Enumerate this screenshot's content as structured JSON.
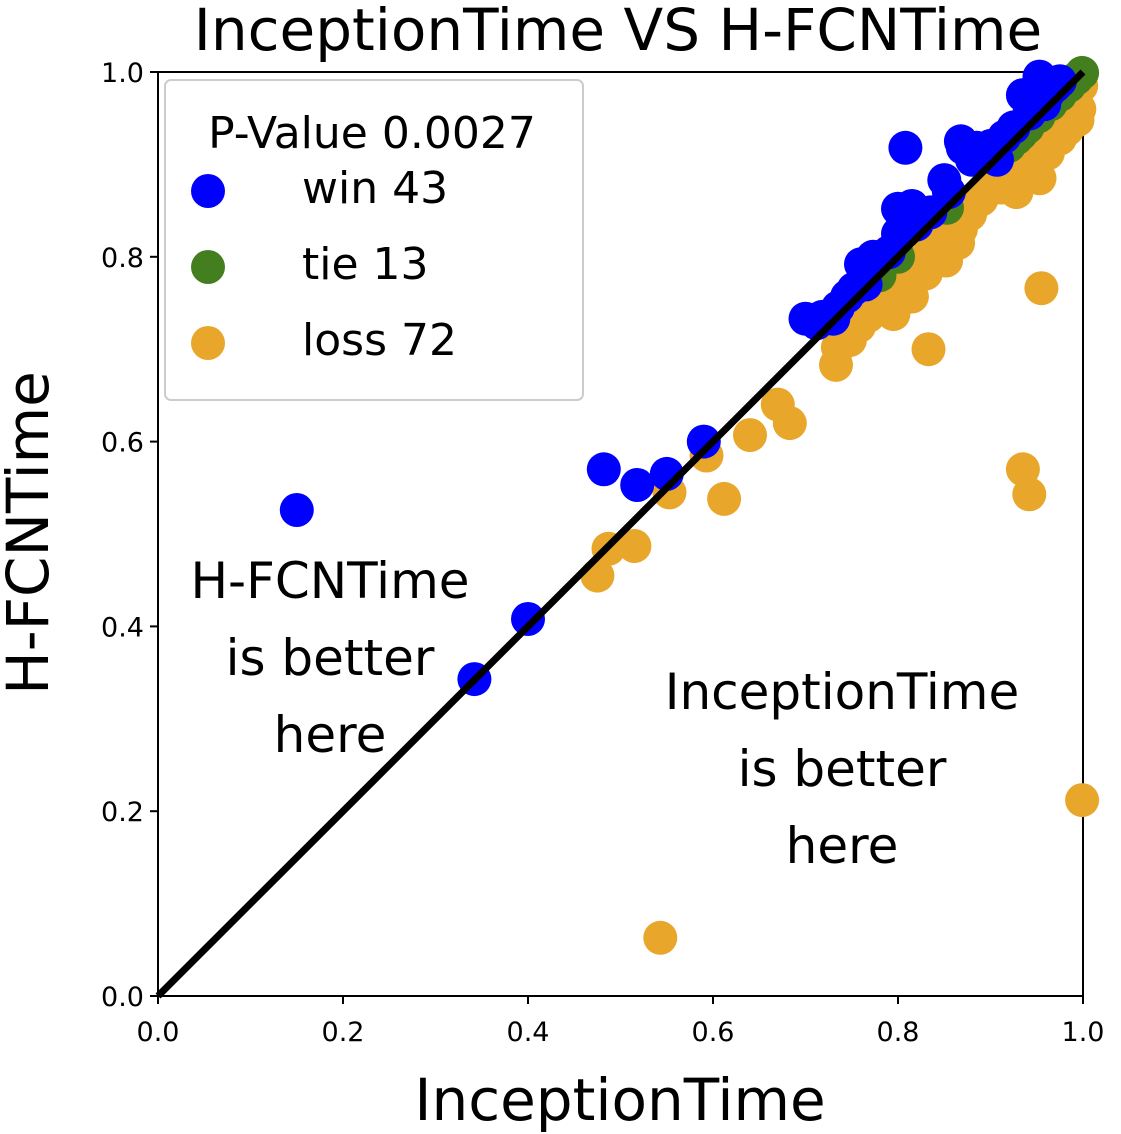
{
  "chart_data": {
    "type": "scatter",
    "title": "InceptionTime VS H-FCNTime",
    "xlabel": "InceptionTime",
    "ylabel": "H-FCNTime",
    "xlim": [
      0.0,
      1.0
    ],
    "ylim": [
      0.0,
      1.0
    ],
    "xticks": [
      "0.0",
      "0.2",
      "0.4",
      "0.6",
      "0.8",
      "1.0"
    ],
    "yticks": [
      "0.0",
      "0.2",
      "0.4",
      "0.6",
      "0.8",
      "1.0"
    ],
    "grid": false,
    "diagonal": true,
    "legend": {
      "title": "P-Value 0.0027",
      "placement": "top-left",
      "entries": [
        {
          "label": "win 43",
          "color": "#0000ff"
        },
        {
          "label": "tie 13",
          "color": "#437f1f"
        },
        {
          "label": "loss 72",
          "color": "#e8a62b"
        }
      ]
    },
    "annotations": [
      {
        "lines": [
          "H-FCNTime",
          "is better",
          "here"
        ]
      },
      {
        "lines": [
          "InceptionTime",
          "is better",
          "here"
        ]
      }
    ],
    "series": [
      {
        "name": "loss 72",
        "color": "#e8a62b",
        "points": [
          [
            0.543,
            0.063
          ],
          [
            0.999,
            0.212
          ],
          [
            0.475,
            0.455
          ],
          [
            0.487,
            0.484
          ],
          [
            0.515,
            0.487
          ],
          [
            0.553,
            0.545
          ],
          [
            0.612,
            0.538
          ],
          [
            0.593,
            0.585
          ],
          [
            0.64,
            0.607
          ],
          [
            0.67,
            0.64
          ],
          [
            0.683,
            0.62
          ],
          [
            0.733,
            0.683
          ],
          [
            0.735,
            0.702
          ],
          [
            0.743,
            0.713
          ],
          [
            0.76,
            0.731
          ],
          [
            0.775,
            0.745
          ],
          [
            0.795,
            0.738
          ],
          [
            0.815,
            0.757
          ],
          [
            0.833,
            0.7
          ],
          [
            0.778,
            0.77
          ],
          [
            0.8,
            0.777
          ],
          [
            0.822,
            0.788
          ],
          [
            0.838,
            0.8
          ],
          [
            0.865,
            0.815
          ],
          [
            0.868,
            0.83
          ],
          [
            0.848,
            0.822
          ],
          [
            0.878,
            0.846
          ],
          [
            0.862,
            0.85
          ],
          [
            0.935,
            0.57
          ],
          [
            0.942,
            0.543
          ],
          [
            0.955,
            0.766
          ],
          [
            0.928,
            0.87
          ],
          [
            0.953,
            0.885
          ],
          [
            0.948,
            0.905
          ],
          [
            0.96,
            0.92
          ],
          [
            0.983,
            0.938
          ],
          [
            0.985,
            0.962
          ],
          [
            0.994,
            0.948
          ],
          [
            0.97,
            0.955
          ],
          [
            0.99,
            0.975
          ],
          [
            0.915,
            0.898
          ],
          [
            0.905,
            0.885
          ],
          [
            0.89,
            0.862
          ],
          [
            0.812,
            0.79
          ],
          [
            0.79,
            0.762
          ],
          [
            0.762,
            0.748
          ],
          [
            0.758,
            0.725
          ],
          [
            0.748,
            0.71
          ],
          [
            0.772,
            0.742
          ],
          [
            0.805,
            0.768
          ],
          [
            0.83,
            0.782
          ],
          [
            0.852,
            0.796
          ],
          [
            0.843,
            0.808
          ],
          [
            0.858,
            0.838
          ],
          [
            0.912,
            0.875
          ],
          [
            0.938,
            0.895
          ],
          [
            0.962,
            0.912
          ],
          [
            0.975,
            0.928
          ],
          [
            0.996,
            0.96
          ],
          [
            0.998,
            0.985
          ],
          [
            0.98,
            0.945
          ],
          [
            0.966,
            0.932
          ],
          [
            0.924,
            0.905
          ],
          [
            0.898,
            0.872
          ],
          [
            0.835,
            0.818
          ],
          [
            0.785,
            0.752
          ],
          [
            0.768,
            0.736
          ],
          [
            0.815,
            0.772
          ],
          [
            0.826,
            0.795
          ],
          [
            0.808,
            0.756
          ],
          [
            0.88,
            0.858
          ],
          [
            0.952,
            0.92
          ]
        ]
      },
      {
        "name": "tie 13",
        "color": "#437f1f",
        "points": [
          [
            0.78,
            0.78
          ],
          [
            0.8,
            0.8
          ],
          [
            0.853,
            0.853
          ],
          [
            0.92,
            0.92
          ],
          [
            0.933,
            0.933
          ],
          [
            0.999,
            0.999
          ],
          [
            0.94,
            0.94
          ],
          [
            0.952,
            0.952
          ],
          [
            0.965,
            0.965
          ],
          [
            0.975,
            0.975
          ],
          [
            0.985,
            0.985
          ],
          [
            0.993,
            0.993
          ],
          [
            0.928,
            0.928
          ]
        ]
      },
      {
        "name": "win 43",
        "color": "#0000ff",
        "points": [
          [
            0.15,
            0.526
          ],
          [
            0.342,
            0.343
          ],
          [
            0.4,
            0.408
          ],
          [
            0.482,
            0.57
          ],
          [
            0.518,
            0.553
          ],
          [
            0.55,
            0.565
          ],
          [
            0.59,
            0.6
          ],
          [
            0.7,
            0.733
          ],
          [
            0.718,
            0.735
          ],
          [
            0.73,
            0.733
          ],
          [
            0.745,
            0.757
          ],
          [
            0.76,
            0.792
          ],
          [
            0.773,
            0.8
          ],
          [
            0.765,
            0.77
          ],
          [
            0.8,
            0.825
          ],
          [
            0.8,
            0.852
          ],
          [
            0.815,
            0.855
          ],
          [
            0.808,
            0.918
          ],
          [
            0.85,
            0.883
          ],
          [
            0.868,
            0.925
          ],
          [
            0.87,
            0.918
          ],
          [
            0.885,
            0.918
          ],
          [
            0.9,
            0.92
          ],
          [
            0.907,
            0.905
          ],
          [
            0.935,
            0.975
          ],
          [
            0.945,
            0.975
          ],
          [
            0.953,
            0.995
          ],
          [
            0.963,
            0.978
          ],
          [
            0.958,
            0.965
          ],
          [
            0.97,
            0.985
          ],
          [
            0.925,
            0.94
          ],
          [
            0.915,
            0.93
          ],
          [
            0.895,
            0.915
          ],
          [
            0.88,
            0.905
          ],
          [
            0.855,
            0.87
          ],
          [
            0.835,
            0.848
          ],
          [
            0.82,
            0.835
          ],
          [
            0.79,
            0.805
          ],
          [
            0.752,
            0.765
          ],
          [
            0.735,
            0.745
          ],
          [
            0.712,
            0.728
          ],
          [
            0.942,
            0.955
          ],
          [
            0.975,
            0.99
          ]
        ]
      }
    ]
  }
}
